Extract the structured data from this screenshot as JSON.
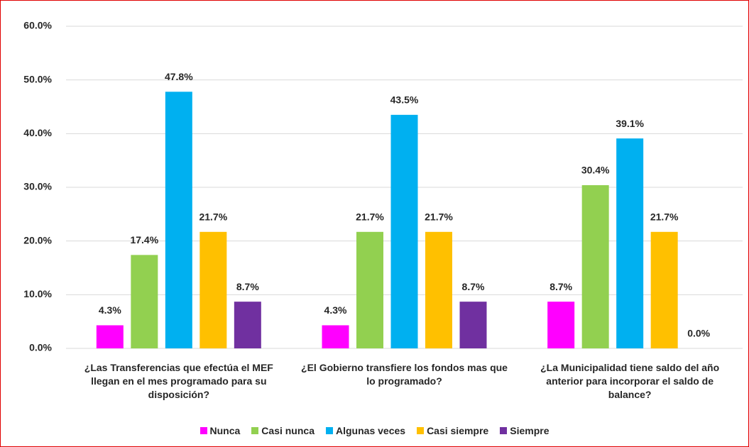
{
  "chart_data": {
    "type": "bar",
    "categories": [
      "¿Las Transferencias que efectúa el MEF llegan en el mes programado para su disposición?",
      "¿El Gobierno transfiere los fondos mas que lo programado?",
      "¿La Municipalidad tiene saldo del año anterior para incorporar el saldo de balance?"
    ],
    "series": [
      {
        "name": "Nunca",
        "color": "#ff00ff",
        "values": [
          4.3,
          4.3,
          8.7
        ],
        "value_labels": [
          "4.3%",
          "4.3%",
          "8.7%"
        ]
      },
      {
        "name": "Casi nunca",
        "color": "#92d050",
        "values": [
          17.4,
          21.7,
          30.4
        ],
        "value_labels": [
          "17.4%",
          "21.7%",
          "30.4%"
        ]
      },
      {
        "name": "Algunas veces",
        "color": "#00b0f0",
        "values": [
          47.8,
          43.5,
          39.1
        ],
        "value_labels": [
          "47.8%",
          "43.5%",
          "39.1%"
        ]
      },
      {
        "name": "Casi siempre",
        "color": "#ffc000",
        "values": [
          21.7,
          21.7,
          21.7
        ],
        "value_labels": [
          "21.7%",
          "21.7%",
          "21.7%"
        ]
      },
      {
        "name": "Siempre",
        "color": "#7030a0",
        "values": [
          8.7,
          8.7,
          0.0
        ],
        "value_labels": [
          "8.7%",
          "8.7%",
          "0.0%"
        ]
      }
    ],
    "ylim": [
      0,
      60
    ],
    "yticks": [
      {
        "value": 0,
        "label": "0.0%"
      },
      {
        "value": 10,
        "label": "10.0%"
      },
      {
        "value": 20,
        "label": "20.0%"
      },
      {
        "value": 30,
        "label": "30.0%"
      },
      {
        "value": 40,
        "label": "40.0%"
      },
      {
        "value": 50,
        "label": "50.0%"
      },
      {
        "value": 60,
        "label": "60.0%"
      }
    ],
    "grid": true,
    "legend": "bottom"
  }
}
